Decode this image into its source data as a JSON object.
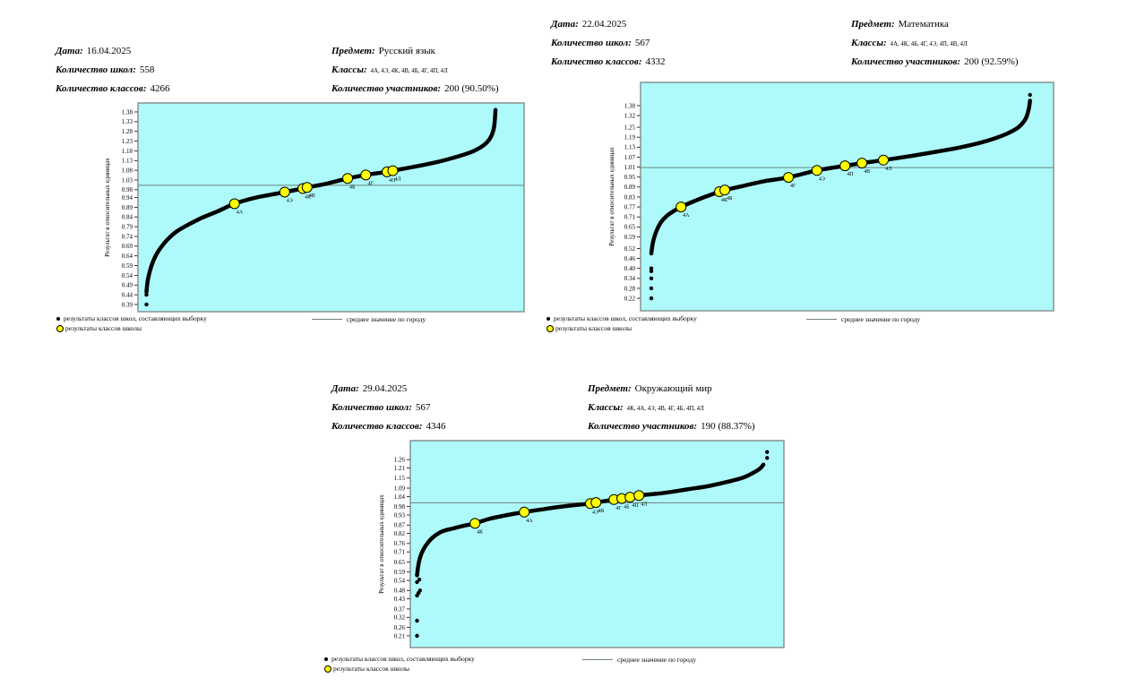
{
  "colors": {
    "plot_bg": "#aefafa",
    "plot_border": "#8a9a9a",
    "mean_line": "#6e8080",
    "sample_dot": "#000000",
    "school_point_fill": "#ffff00",
    "school_point_stroke": "#000000"
  },
  "legend": {
    "sample_all": "результаты классов школ, составляющих выборку",
    "sample_school": "результаты классов школы",
    "mean": "среднее значение по городу"
  },
  "chart_data": [
    {
      "type": "scatter",
      "header": {
        "date_label": "Дата:",
        "date_value": "16.04.2025",
        "schools_label": "Количество школ:",
        "schools_value": "558",
        "classes_count_label": "Количество классов:",
        "classes_count_value": "4266",
        "subject_label": "Предмет:",
        "subject_value": "Русский язык",
        "classes_label": "Классы:",
        "classes_value": "4А, 4Э, 4К, 4В, 4Б, 4Г, 4П, 4Л",
        "participants_label": "Количество участников:",
        "participants_value": "200 (90.50%)"
      },
      "ylabel": "Результат в относительных единицах",
      "yticks": [
        "1.38",
        "1.33",
        "1.28",
        "1.23",
        "1.18",
        "1.13",
        "1.08",
        "1.03",
        "0.98",
        "0.94",
        "0.89",
        "0.84",
        "0.79",
        "0.74",
        "0.69",
        "0.64",
        "0.59",
        "0.54",
        "0.49",
        "0.44",
        "0.39"
      ],
      "ylim": [
        0.353,
        1.426
      ],
      "mean_value": 1.003,
      "curve": [
        [
          0.022,
          0.455
        ],
        [
          0.025,
          0.51
        ],
        [
          0.03,
          0.555
        ],
        [
          0.037,
          0.6
        ],
        [
          0.047,
          0.645
        ],
        [
          0.06,
          0.685
        ],
        [
          0.077,
          0.725
        ],
        [
          0.1,
          0.765
        ],
        [
          0.13,
          0.8
        ],
        [
          0.165,
          0.835
        ],
        [
          0.205,
          0.868
        ],
        [
          0.25,
          0.908
        ],
        [
          0.3,
          0.937
        ],
        [
          0.34,
          0.953
        ],
        [
          0.38,
          0.968
        ],
        [
          0.427,
          0.986
        ],
        [
          0.438,
          0.992
        ],
        [
          0.49,
          1.012
        ],
        [
          0.543,
          1.038
        ],
        [
          0.59,
          1.056
        ],
        [
          0.645,
          1.072
        ],
        [
          0.66,
          1.078
        ],
        [
          0.72,
          1.1
        ],
        [
          0.78,
          1.125
        ],
        [
          0.83,
          1.152
        ],
        [
          0.868,
          1.178
        ],
        [
          0.895,
          1.208
        ],
        [
          0.912,
          1.245
        ],
        [
          0.922,
          1.3
        ],
        [
          0.926,
          1.39
        ]
      ],
      "outliers": [
        [
          0.022,
          0.39
        ],
        [
          0.022,
          0.44
        ]
      ],
      "school_points": [
        {
          "label": "4А",
          "x": 0.25,
          "value": 0.908
        },
        {
          "label": "4Э",
          "x": 0.38,
          "value": 0.968
        },
        {
          "label": "4К",
          "x": 0.427,
          "value": 0.986
        },
        {
          "label": "4В",
          "x": 0.438,
          "value": 0.992
        },
        {
          "label": "4Б",
          "x": 0.543,
          "value": 1.038
        },
        {
          "label": "4Г",
          "x": 0.59,
          "value": 1.056
        },
        {
          "label": "4П",
          "x": 0.645,
          "value": 1.072
        },
        {
          "label": "4Л",
          "x": 0.66,
          "value": 1.078
        }
      ]
    },
    {
      "type": "scatter",
      "header": {
        "date_label": "Дата:",
        "date_value": "22.04.2025",
        "schools_label": "Количество школ:",
        "schools_value": "567",
        "classes_count_label": "Количество классов:",
        "classes_count_value": "4332",
        "subject_label": "Предмет:",
        "subject_value": "Математика",
        "classes_label": "Классы:",
        "classes_value": "4А, 4К, 4Б, 4Г, 4Э, 4П, 4В, 4Л",
        "participants_label": "Количество участников:",
        "participants_value": "200 (92.59%)"
      },
      "ylabel": "Результат в относительных единицах",
      "yticks": [
        "1.38",
        "1.32",
        "1.25",
        "1.19",
        "1.13",
        "1.07",
        "1.01",
        "0.95",
        "0.89",
        "0.83",
        "0.77",
        "0.71",
        "0.65",
        "0.59",
        "0.52",
        "0.46",
        "0.40",
        "0.34",
        "0.28",
        "0.22"
      ],
      "ylim": [
        0.145,
        1.52
      ],
      "mean_value": 1.007,
      "curve": [
        [
          0.026,
          0.49
        ],
        [
          0.029,
          0.545
        ],
        [
          0.034,
          0.595
        ],
        [
          0.041,
          0.64
        ],
        [
          0.05,
          0.68
        ],
        [
          0.063,
          0.715
        ],
        [
          0.08,
          0.745
        ],
        [
          0.098,
          0.77
        ],
        [
          0.12,
          0.795
        ],
        [
          0.15,
          0.825
        ],
        [
          0.191,
          0.862
        ],
        [
          0.204,
          0.872
        ],
        [
          0.25,
          0.898
        ],
        [
          0.3,
          0.925
        ],
        [
          0.358,
          0.948
        ],
        [
          0.427,
          0.99
        ],
        [
          0.495,
          1.018
        ],
        [
          0.536,
          1.034
        ],
        [
          0.588,
          1.052
        ],
        [
          0.65,
          1.075
        ],
        [
          0.71,
          1.1
        ],
        [
          0.77,
          1.127
        ],
        [
          0.82,
          1.155
        ],
        [
          0.86,
          1.185
        ],
        [
          0.89,
          1.215
        ],
        [
          0.915,
          1.25
        ],
        [
          0.932,
          1.3
        ],
        [
          0.94,
          1.36
        ],
        [
          0.943,
          1.41
        ]
      ],
      "outliers": [
        [
          0.026,
          0.22
        ],
        [
          0.026,
          0.28
        ],
        [
          0.026,
          0.34
        ],
        [
          0.026,
          0.383
        ],
        [
          0.026,
          0.4
        ],
        [
          0.943,
          1.445
        ]
      ],
      "school_points": [
        {
          "label": "4А",
          "x": 0.098,
          "value": 0.77
        },
        {
          "label": "4К",
          "x": 0.191,
          "value": 0.862
        },
        {
          "label": "4Б",
          "x": 0.204,
          "value": 0.872
        },
        {
          "label": "4Г",
          "x": 0.358,
          "value": 0.948
        },
        {
          "label": "4Э",
          "x": 0.427,
          "value": 0.99
        },
        {
          "label": "4П",
          "x": 0.495,
          "value": 1.018
        },
        {
          "label": "4В",
          "x": 0.536,
          "value": 1.034
        },
        {
          "label": "4Л",
          "x": 0.588,
          "value": 1.052
        }
      ]
    },
    {
      "type": "scatter",
      "header": {
        "date_label": "Дата:",
        "date_value": "29.04.2025",
        "schools_label": "Количество школ:",
        "schools_value": "567",
        "classes_count_label": "Количество классов:",
        "classes_count_value": "4346",
        "subject_label": "Предмет:",
        "subject_value": "Окружающий мир",
        "classes_label": "Классы:",
        "classes_value": "4К, 4А, 4Э, 4В, 4Г, 4Б, 4П, 4Л",
        "participants_label": "Количество участников:",
        "participants_value": "190 (88.37%)"
      },
      "ylabel": "Результат в относительных единицах",
      "yticks": [
        "1.26",
        "1.21",
        "1.15",
        "1.09",
        "1.04",
        "0.98",
        "0.93",
        "0.87",
        "0.82",
        "0.76",
        "0.71",
        "0.65",
        "0.59",
        "0.54",
        "0.48",
        "0.43",
        "0.37",
        "0.32",
        "0.26",
        "0.21"
      ],
      "ylim": [
        0.14,
        1.373
      ],
      "mean_value": 1.003,
      "curve": [
        [
          0.018,
          0.57
        ],
        [
          0.021,
          0.625
        ],
        [
          0.026,
          0.675
        ],
        [
          0.034,
          0.72
        ],
        [
          0.046,
          0.762
        ],
        [
          0.062,
          0.8
        ],
        [
          0.085,
          0.832
        ],
        [
          0.115,
          0.85
        ],
        [
          0.145,
          0.867
        ],
        [
          0.173,
          0.88
        ],
        [
          0.21,
          0.906
        ],
        [
          0.26,
          0.93
        ],
        [
          0.305,
          0.947
        ],
        [
          0.36,
          0.966
        ],
        [
          0.42,
          0.984
        ],
        [
          0.482,
          0.998
        ],
        [
          0.497,
          1.004
        ],
        [
          0.545,
          1.022
        ],
        [
          0.566,
          1.028
        ],
        [
          0.588,
          1.036
        ],
        [
          0.612,
          1.046
        ],
        [
          0.68,
          1.062
        ],
        [
          0.74,
          1.082
        ],
        [
          0.8,
          1.103
        ],
        [
          0.85,
          1.128
        ],
        [
          0.89,
          1.152
        ],
        [
          0.915,
          1.178
        ],
        [
          0.935,
          1.205
        ],
        [
          0.945,
          1.23
        ]
      ],
      "outliers": [
        [
          0.018,
          0.21
        ],
        [
          0.018,
          0.3
        ],
        [
          0.018,
          0.45
        ],
        [
          0.022,
          0.465
        ],
        [
          0.026,
          0.48
        ],
        [
          0.018,
          0.53
        ],
        [
          0.024,
          0.545
        ],
        [
          0.955,
          1.27
        ],
        [
          0.955,
          1.305
        ]
      ],
      "school_points": [
        {
          "label": "4К",
          "x": 0.173,
          "value": 0.88
        },
        {
          "label": "4А",
          "x": 0.305,
          "value": 0.947
        },
        {
          "label": "4Э",
          "x": 0.482,
          "value": 0.998
        },
        {
          "label": "4В",
          "x": 0.497,
          "value": 1.004
        },
        {
          "label": "4Г",
          "x": 0.545,
          "value": 1.022
        },
        {
          "label": "4Б",
          "x": 0.566,
          "value": 1.028
        },
        {
          "label": "4П",
          "x": 0.588,
          "value": 1.036
        },
        {
          "label": "4Л",
          "x": 0.612,
          "value": 1.046
        }
      ]
    }
  ]
}
